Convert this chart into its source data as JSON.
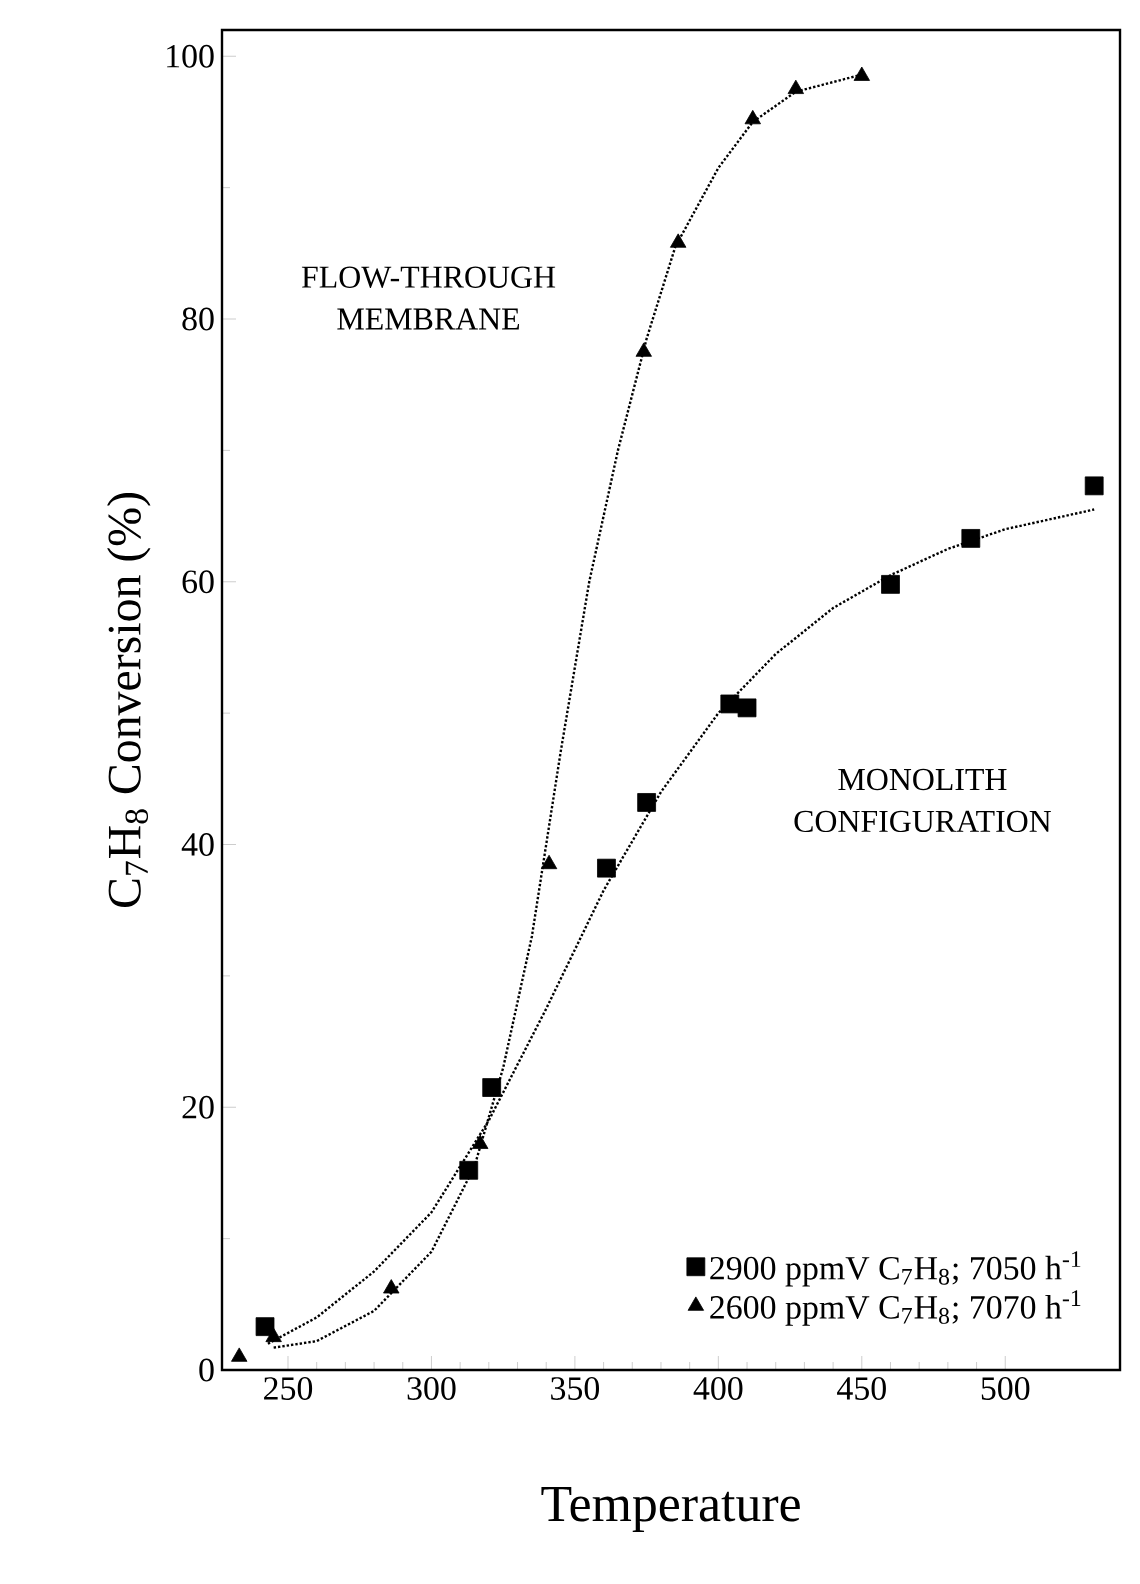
{
  "chart_data": {
    "type": "scatter",
    "xlabel": "Temperature",
    "ylabel": "C$_{7}$H$_{8}$ Conversion (%)",
    "xlim": [
      227,
      540
    ],
    "ylim": [
      0,
      102
    ],
    "xticks": [
      250,
      300,
      350,
      400,
      450,
      500
    ],
    "yticks": [
      0,
      20,
      40,
      60,
      80,
      100
    ],
    "legend": "bottom right",
    "grid": false,
    "annotations": [
      "FLOW-THROUGH MEMBRANE",
      "MONOLITH CONFIGURATION"
    ],
    "series": [
      {
        "name": "2900 ppmV C$_{7}$H$_{8}$; 7050 h$^{-1}$",
        "color": "#000000",
        "marker": "square",
        "x": [
          242,
          313,
          321,
          361,
          375,
          404,
          410,
          460,
          488,
          531
        ],
        "values": [
          3.3,
          15.2,
          21.5,
          38.2,
          43.2,
          50.7,
          50.4,
          59.8,
          63.3,
          67.3
        ]
      },
      {
        "name": "2600 ppmV C$_{7}$H$_{8}$; 7070 h$^{-1}$",
        "color": "#000000",
        "marker": "triangle",
        "x": [
          233,
          245,
          286,
          317,
          341,
          374,
          386,
          412,
          427,
          450
        ],
        "values": [
          1.0,
          2.5,
          6.2,
          17.2,
          38.5,
          77.5,
          85.8,
          95.2,
          97.5,
          98.5
        ]
      },
      {
        "type": "line",
        "color": "#000000",
        "marker": "none",
        "line_style": "dotted",
        "x": [
          243,
          260,
          280,
          300,
          320,
          340,
          360,
          380,
          400,
          420,
          440,
          460,
          480,
          500,
          531
        ],
        "values": [
          2.0,
          4,
          7.5,
          12,
          19,
          27.5,
          36.5,
          44,
          50,
          54.5,
          58,
          60.5,
          62.5,
          64,
          65.5
        ]
      },
      {
        "type": "line",
        "color": "#000000",
        "marker": "none",
        "line_style": "dotted",
        "x": [
          245,
          260,
          280,
          300,
          315,
          325,
          335,
          345,
          355,
          365,
          375,
          385,
          400,
          412,
          427,
          450
        ],
        "values": [
          1.7,
          2.2,
          4.5,
          9,
          15.5,
          23,
          33,
          47,
          60,
          70,
          78.5,
          85.5,
          91.5,
          95,
          97.3,
          98.6
        ]
      }
    ]
  }
}
